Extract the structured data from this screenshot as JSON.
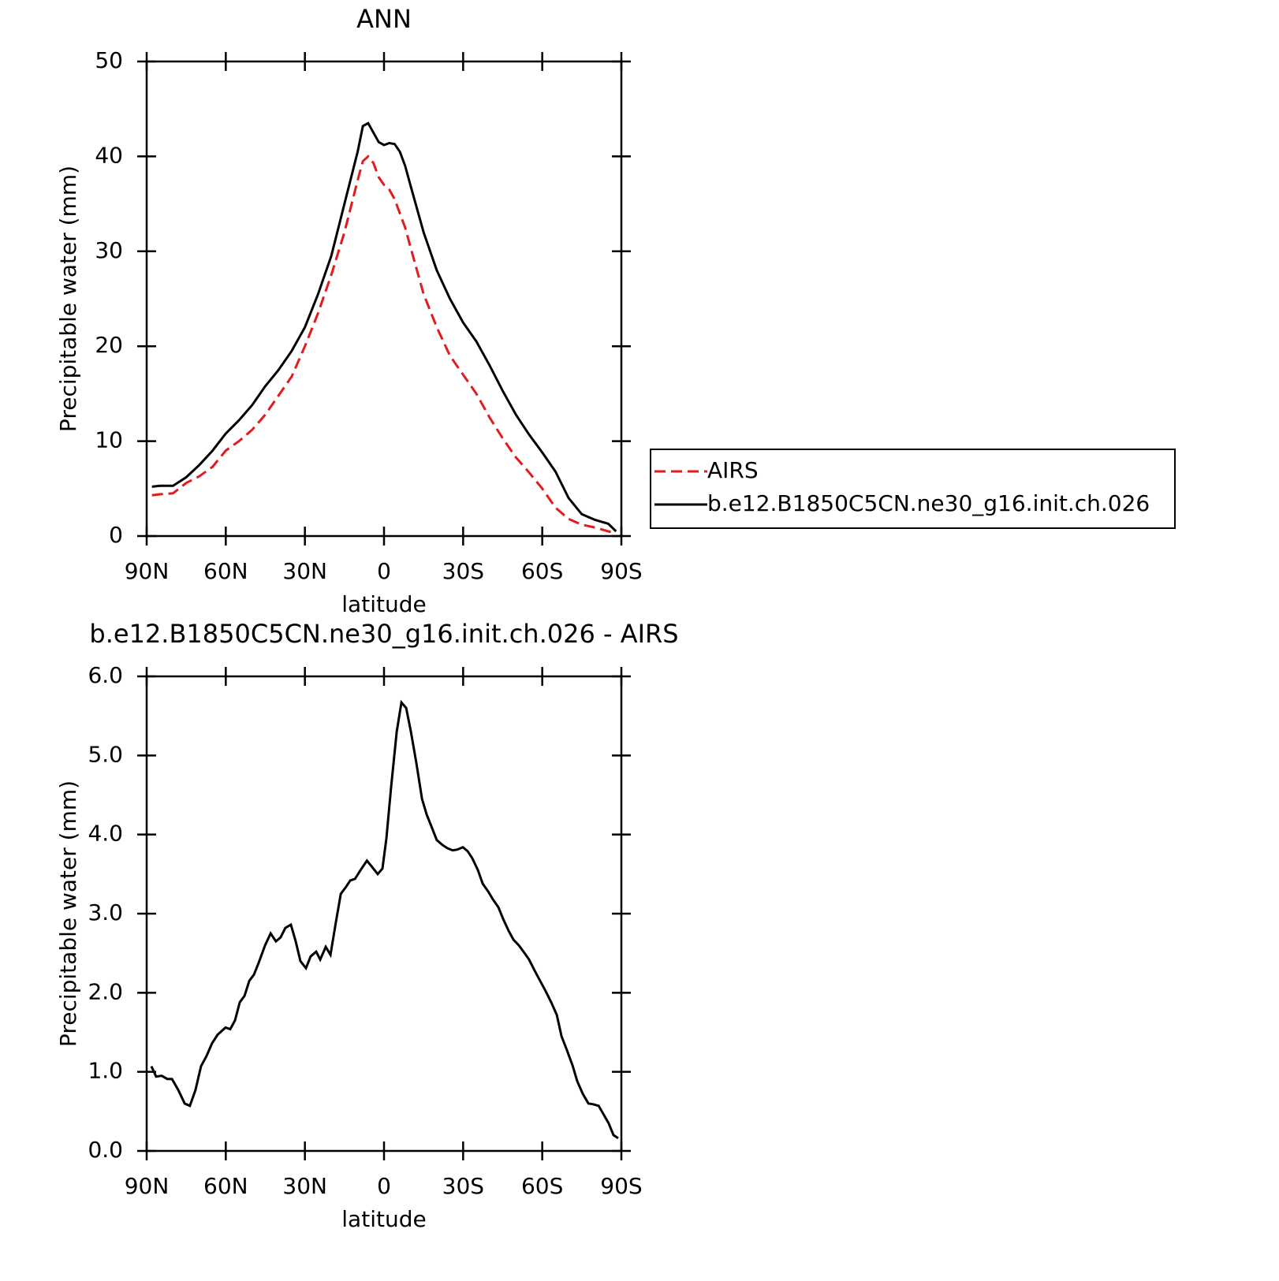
{
  "chart_data": [
    {
      "type": "line",
      "title": "ANN",
      "xlabel": "latitude",
      "ylabel": "Precipitable water (mm)",
      "x": [
        88,
        85,
        80,
        75,
        70,
        65,
        60,
        55,
        50,
        45,
        40,
        35,
        30,
        25,
        20,
        15,
        10,
        8,
        6,
        4,
        2,
        0,
        -2,
        -4,
        -6,
        -8,
        -10,
        -15,
        -20,
        -25,
        -30,
        -35,
        -40,
        -45,
        -50,
        -55,
        -60,
        -65,
        -70,
        -75,
        -80,
        -85,
        -88
      ],
      "series": [
        {
          "name": "AIRS",
          "color": "#e41a1c",
          "linestyle": "dashed",
          "values": [
            4.3,
            4.4,
            4.5,
            5.6,
            6.3,
            7.3,
            9,
            10,
            11.2,
            12.8,
            14.8,
            16.8,
            20,
            23.5,
            27.5,
            32,
            37.5,
            39.5,
            40,
            39.3,
            37.8,
            37,
            36.5,
            35.5,
            34,
            32.5,
            30.5,
            25.5,
            22,
            19,
            17,
            15,
            12.5,
            10.3,
            8.3,
            6.7,
            5,
            3,
            1.8,
            1.2,
            0.9,
            0.5,
            0.3
          ]
        },
        {
          "name": "b.e12.B1850C5CN.ne30_g16.init.ch.026",
          "color": "#000000",
          "linestyle": "solid",
          "values": [
            5.2,
            5.3,
            5.3,
            6.2,
            7.5,
            9,
            10.8,
            12.2,
            13.8,
            15.8,
            17.5,
            19.5,
            22,
            25.5,
            29.5,
            35,
            40.5,
            43.2,
            43.5,
            42.5,
            41.5,
            41.2,
            41.4,
            41.3,
            40.5,
            39,
            37,
            32,
            28,
            25,
            22.5,
            20.5,
            18,
            15.3,
            12.8,
            10.7,
            8.8,
            6.8,
            4,
            2.3,
            1.7,
            1.3,
            0.5
          ]
        }
      ],
      "xlim": [
        90,
        -90
      ],
      "xticks": [
        {
          "value": 90,
          "label": "90N"
        },
        {
          "value": 60,
          "label": "60N"
        },
        {
          "value": 30,
          "label": "30N"
        },
        0,
        {
          "value": -30,
          "label": "30S"
        },
        {
          "value": -60,
          "label": "60S"
        },
        {
          "value": -90,
          "label": "90S"
        }
      ],
      "ylim": [
        0,
        50
      ],
      "yticks": [
        0,
        10,
        20,
        30,
        40,
        50
      ],
      "legend": "right"
    },
    {
      "type": "line",
      "title": "b.e12.B1850C5CN.ne30_g16.init.ch.026 - AIRS",
      "xlabel": "latitude",
      "ylabel": "Precipitable water (mm)",
      "x": [
        88.2,
        86.4,
        84.3,
        82.2,
        80.4,
        78,
        75.6,
        73.6,
        71.5,
        69.4,
        67.3,
        65.2,
        63.1,
        60.1,
        58.3,
        56.5,
        54.7,
        52.9,
        51.1,
        49.3,
        47.5,
        45.1,
        43,
        41,
        39.2,
        37.4,
        35.3,
        33.5,
        31.7,
        29.6,
        27.8,
        25.7,
        24.2,
        22.1,
        20.3,
        18.2,
        16.4,
        14.6,
        12.8,
        11,
        8.9,
        6.5,
        4.5,
        2.4,
        0.6,
        -0.9,
        -2.7,
        -4.8,
        -6.6,
        -8.4,
        -10.2,
        -12.3,
        -14.4,
        -16.2,
        -18,
        -20,
        -22.1,
        -23.9,
        -26,
        -27.8,
        -29.9,
        -31.7,
        -33.5,
        -35.6,
        -37.4,
        -39.5,
        -41.3,
        -43.4,
        -45.2,
        -47.3,
        -49.1,
        -51.1,
        -52.9,
        -55,
        -57.1,
        -59.2,
        -61.3,
        -63.4,
        -65.5,
        -67.3,
        -69.4,
        -71.5,
        -73.3,
        -75.4,
        -77.5,
        -79.3,
        -81.4,
        -83.1,
        -85.2,
        -87,
        -88.8
      ],
      "series": [
        {
          "color": "#000000",
          "linestyle": "solid",
          "values": [
            1.07,
            0.94,
            0.95,
            0.91,
            0.91,
            0.77,
            0.6,
            0.57,
            0.77,
            1.07,
            1.2,
            1.36,
            1.47,
            1.56,
            1.54,
            1.65,
            1.88,
            1.96,
            2.15,
            2.23,
            2.38,
            2.6,
            2.75,
            2.65,
            2.7,
            2.82,
            2.86,
            2.65,
            2.4,
            2.31,
            2.46,
            2.52,
            2.42,
            2.58,
            2.48,
            2.9,
            3.25,
            3.33,
            3.42,
            3.44,
            3.55,
            3.67,
            3.59,
            3.5,
            3.57,
            3.95,
            4.6,
            5.3,
            5.67,
            5.6,
            5.3,
            4.9,
            4.45,
            4.25,
            4.1,
            3.93,
            3.87,
            3.83,
            3.8,
            3.81,
            3.84,
            3.79,
            3.7,
            3.55,
            3.38,
            3.28,
            3.18,
            3.08,
            2.93,
            2.78,
            2.67,
            2.6,
            2.52,
            2.42,
            2.28,
            2.15,
            2.02,
            1.88,
            1.72,
            1.45,
            1.27,
            1.08,
            0.88,
            0.72,
            0.6,
            0.59,
            0.57,
            0.47,
            0.35,
            0.2,
            0.16
          ]
        }
      ],
      "xlim": [
        90,
        -90
      ],
      "xticks": [
        {
          "value": 90,
          "label": "90N"
        },
        {
          "value": 60,
          "label": "60N"
        },
        {
          "value": 30,
          "label": "30N"
        },
        0,
        {
          "value": -30,
          "label": "30S"
        },
        {
          "value": -60,
          "label": "60S"
        },
        {
          "value": -90,
          "label": "90S"
        }
      ],
      "ylim": [
        0,
        6
      ],
      "yticks": [
        {
          "value": 0,
          "label": "0.0"
        },
        {
          "value": 1,
          "label": "1.0"
        },
        {
          "value": 2,
          "label": "2.0"
        },
        {
          "value": 3,
          "label": "3.0"
        },
        {
          "value": 4,
          "label": "4.0"
        },
        {
          "value": 5,
          "label": "5.0"
        },
        {
          "value": 6,
          "label": "6.0"
        }
      ]
    }
  ]
}
